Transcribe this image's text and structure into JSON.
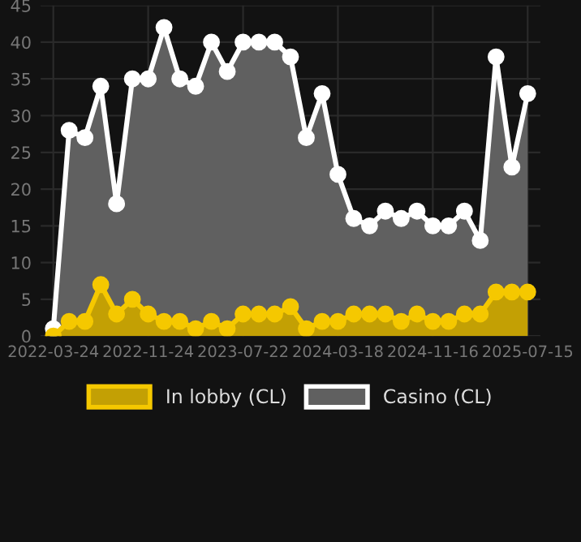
{
  "chart_data": {
    "type": "area",
    "categories": [
      "2022-03-24",
      null,
      null,
      null,
      null,
      null,
      "2022-11-24",
      null,
      null,
      null,
      null,
      null,
      "2023-07-22",
      null,
      null,
      null,
      null,
      null,
      "2024-03-18",
      null,
      null,
      null,
      null,
      null,
      "2024-11-16",
      null,
      null,
      null,
      null,
      null,
      "2025-07-15"
    ],
    "series": [
      {
        "name": "In lobby (CL)",
        "color": "#f5c800",
        "values": [
          0,
          2,
          2,
          7,
          3,
          5,
          3,
          2,
          2,
          1,
          2,
          1,
          3,
          3,
          3,
          4,
          1,
          2,
          2,
          3,
          3,
          3,
          2,
          3,
          2,
          2,
          3,
          3,
          6,
          6,
          6
        ]
      },
      {
        "name": "Casino (CL)",
        "color": "#ffffff",
        "values": [
          1,
          28,
          27,
          34,
          18,
          35,
          35,
          42,
          35,
          34,
          40,
          36,
          40,
          40,
          40,
          38,
          27,
          33,
          22,
          16,
          15,
          17,
          16,
          17,
          15,
          15,
          17,
          13,
          38,
          23,
          33
        ]
      }
    ],
    "ylim": [
      0,
      45
    ],
    "yticks": [
      0,
      5,
      10,
      15,
      20,
      25,
      30,
      35,
      40,
      45
    ],
    "grid": true,
    "legend": "bottom",
    "marker": "circle"
  }
}
